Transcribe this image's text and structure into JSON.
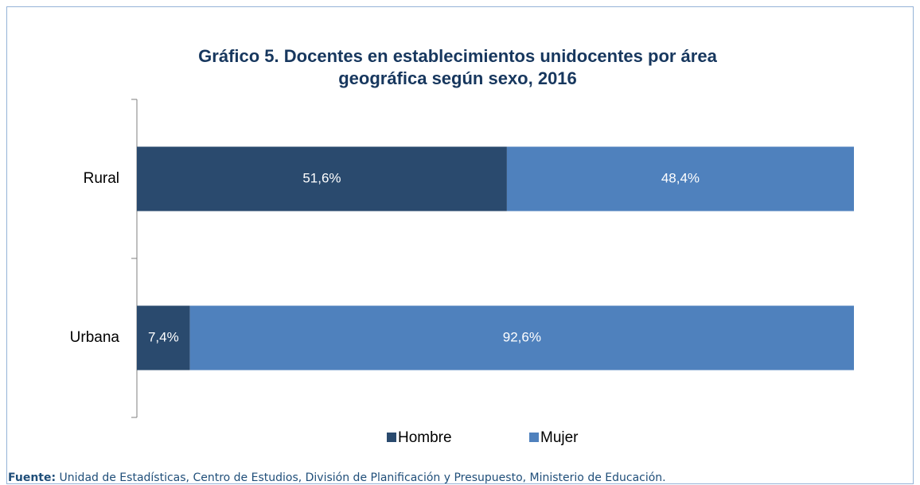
{
  "chart_data": {
    "type": "stacked-barh",
    "title": [
      "Gráfico 5. Docentes en establecimientos unidocentes por área",
      "geográfica según sexo, 2016"
    ],
    "categories": [
      "Rural",
      "Urbana"
    ],
    "xlim": [
      0,
      100
    ],
    "series": [
      {
        "name": "Hombre",
        "color": "#2a4a6e",
        "values": [
          51.6,
          7.4
        ],
        "value_labels": [
          "51,6%",
          "7,4%"
        ]
      },
      {
        "name": "Mujer",
        "color": "#4f81bd",
        "values": [
          48.4,
          92.6
        ],
        "value_labels": [
          "48,4%",
          "92,6%"
        ]
      }
    ],
    "legend": "bottom"
  },
  "source": {
    "label": "Fuente:",
    "text": "Unidad de Estadísticas, Centro de Estudios, División de Planificación y Presupuesto, Ministerio de Educación."
  }
}
